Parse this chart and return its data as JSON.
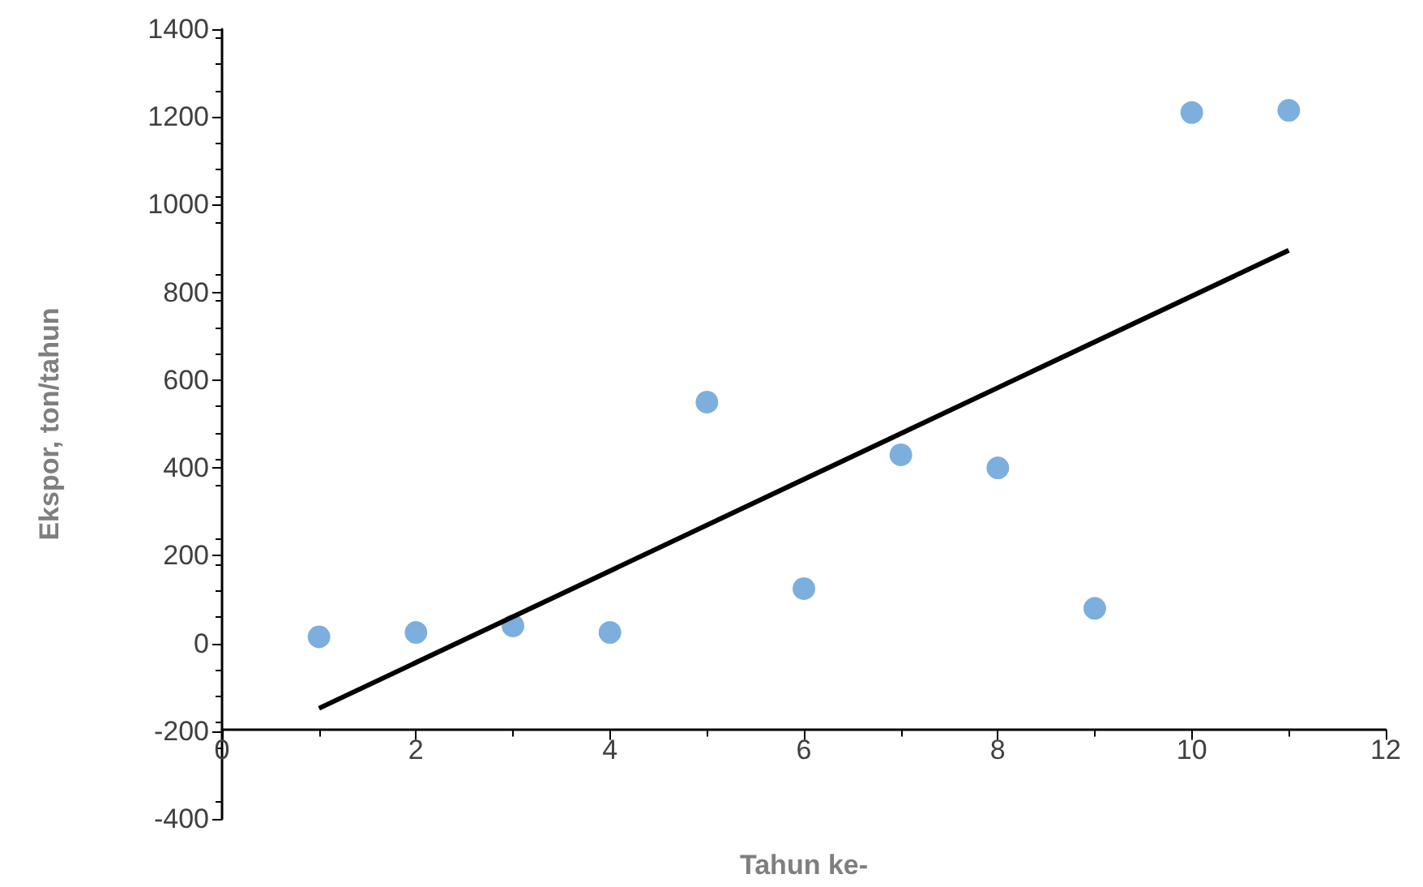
{
  "chart_data": {
    "type": "scatter",
    "xlabel": "Tahun ke-",
    "ylabel": "Ekspor, ton/tahun",
    "xlim": [
      0,
      12
    ],
    "xticks": [
      0,
      2,
      4,
      6,
      8,
      10,
      12
    ],
    "ylim": [
      -400,
      1400
    ],
    "yticks": [
      -400,
      -200,
      0,
      200,
      400,
      600,
      800,
      1000,
      1200,
      1400
    ],
    "grid": false,
    "marker": "circle",
    "series": [
      {
        "color": "#5b9bd5",
        "x": [
          1,
          2,
          3,
          4,
          5,
          6,
          7,
          8,
          9,
          10,
          11
        ],
        "values": [
          15,
          25,
          40,
          25,
          550,
          125,
          430,
          400,
          80,
          1210,
          1215
        ]
      },
      {
        "type": "line",
        "color": "#000000",
        "marker": "none",
        "line_style": "solid",
        "x": [
          1,
          11
        ],
        "values": [
          -148,
          896
        ]
      }
    ]
  }
}
